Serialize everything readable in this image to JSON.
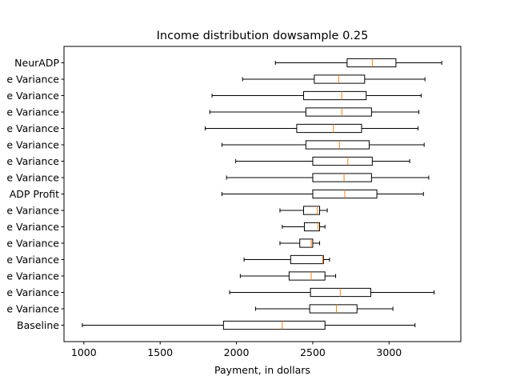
{
  "chart_data": {
    "type": "boxplot",
    "orientation": "horizontal",
    "title": "Income distribution dowsample 0.25",
    "xlabel": "Payment, in dollars",
    "ylabel": "",
    "xlim": [
      870,
      3470
    ],
    "xticks": [
      1000,
      1500,
      2000,
      2500,
      3000
    ],
    "grid": false,
    "colors": {
      "box": "#000000",
      "median": "#ff7f0e"
    },
    "categories": [
      "NeurADP",
      "e Variance",
      "e Variance",
      "e Variance",
      "e Variance",
      "e Variance",
      "e Variance",
      "e Variance",
      "ADP Profit",
      "e Variance",
      "e Variance",
      "e Variance",
      "e Variance",
      "e Variance",
      "e Variance",
      "e Variance",
      "Baseline"
    ],
    "boxes": [
      {
        "whislo": 2255,
        "q1": 2725,
        "med": 2890,
        "q3": 3045,
        "whishi": 3345
      },
      {
        "whislo": 2040,
        "q1": 2510,
        "med": 2670,
        "q3": 2840,
        "whishi": 3235
      },
      {
        "whislo": 1840,
        "q1": 2440,
        "med": 2690,
        "q3": 2850,
        "whishi": 3210
      },
      {
        "whislo": 1825,
        "q1": 2455,
        "med": 2690,
        "q3": 2885,
        "whishi": 3195
      },
      {
        "whislo": 1795,
        "q1": 2395,
        "med": 2635,
        "q3": 2820,
        "whishi": 3190
      },
      {
        "whislo": 1905,
        "q1": 2455,
        "med": 2675,
        "q3": 2870,
        "whishi": 3230
      },
      {
        "whislo": 1995,
        "q1": 2500,
        "med": 2730,
        "q3": 2890,
        "whishi": 3135
      },
      {
        "whislo": 1935,
        "q1": 2500,
        "med": 2705,
        "q3": 2885,
        "whishi": 3260
      },
      {
        "whislo": 1905,
        "q1": 2500,
        "med": 2710,
        "q3": 2920,
        "whishi": 3225
      },
      {
        "whislo": 2285,
        "q1": 2440,
        "med": 2530,
        "q3": 2545,
        "whishi": 2595
      },
      {
        "whislo": 2300,
        "q1": 2445,
        "med": 2535,
        "q3": 2545,
        "whishi": 2580
      },
      {
        "whislo": 2285,
        "q1": 2415,
        "med": 2490,
        "q3": 2500,
        "whishi": 2545
      },
      {
        "whislo": 2050,
        "q1": 2355,
        "med": 2565,
        "q3": 2570,
        "whishi": 2610
      },
      {
        "whislo": 2025,
        "q1": 2345,
        "med": 2490,
        "q3": 2580,
        "whishi": 2650
      },
      {
        "whislo": 1955,
        "q1": 2485,
        "med": 2680,
        "q3": 2880,
        "whishi": 3295
      },
      {
        "whislo": 2125,
        "q1": 2480,
        "med": 2655,
        "q3": 2790,
        "whishi": 3025
      },
      {
        "whislo": 990,
        "q1": 1915,
        "med": 2300,
        "q3": 2580,
        "whishi": 3170
      }
    ]
  }
}
